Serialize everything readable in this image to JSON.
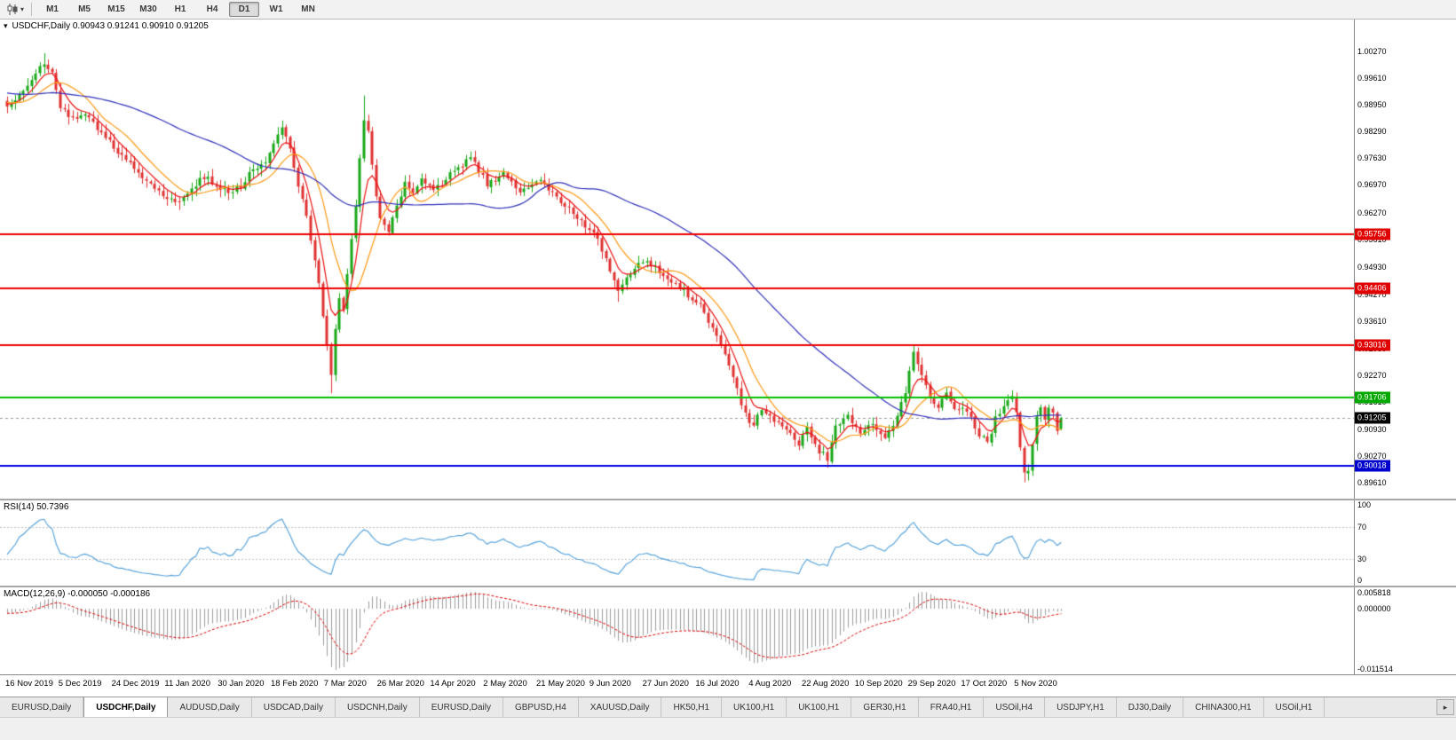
{
  "toolbar": {
    "dropdown_caret": "▾",
    "timeframes": [
      "M1",
      "M5",
      "M15",
      "M30",
      "H1",
      "H4",
      "D1",
      "W1",
      "MN"
    ],
    "active_timeframe": "D1"
  },
  "main_chart": {
    "legend": "USDCHF,Daily 0.90943 0.91241 0.90910 0.91205",
    "one_click_caret": "▾",
    "y_ticks": [
      "1.00270",
      "0.99610",
      "0.98950",
      "0.98290",
      "0.97630",
      "0.96970",
      "0.96270",
      "0.95610",
      "0.94930",
      "0.94270",
      "0.93610",
      "0.92930",
      "0.92270",
      "0.91610",
      "0.90930",
      "0.90270",
      "0.89610"
    ],
    "price_lines": [
      {
        "price": 0.95756,
        "label": "0.95756",
        "line_color": "#ee0000",
        "tag_bg": "#e00000"
      },
      {
        "price": 0.94406,
        "label": "0.94406",
        "line_color": "#ee0000",
        "tag_bg": "#e00000"
      },
      {
        "price": 0.93016,
        "label": "0.93016",
        "line_color": "#ee0000",
        "tag_bg": "#e00000"
      },
      {
        "price": 0.91706,
        "label": "0.91706",
        "line_color": "#00c000",
        "tag_bg": "#00a800"
      },
      {
        "price": 0.90018,
        "label": "0.90018",
        "line_color": "#0000e0",
        "tag_bg": "#0000cc"
      }
    ],
    "bid_price": {
      "value": 0.91205,
      "label": "0.91205",
      "tag_bg": "#000000",
      "line_color": "#9a9a9a"
    }
  },
  "rsi_panel": {
    "legend": "RSI(14) 50.7396",
    "period": 14,
    "value": 50.7396,
    "levels": [
      70,
      30
    ],
    "y_ticks": [
      "100",
      "70",
      "30",
      "0"
    ],
    "line_color": "#4d9edb"
  },
  "macd_panel": {
    "legend": "MACD(12,26,9) -0.000050 -0.000186",
    "macd_value": -5e-05,
    "signal_value": -0.000186,
    "y_ticks": [
      "0.005818",
      "0.000000",
      "-0.011514"
    ],
    "hist_color": "#9c9c9c",
    "signal_color": "#e00000"
  },
  "time_axis": {
    "labels": [
      "16 Nov 2019",
      "5 Dec 2019",
      "24 Dec 2019",
      "11 Jan 2020",
      "30 Jan 2020",
      "18 Feb 2020",
      "7 Mar 2020",
      "26 Mar 2020",
      "14 Apr 2020",
      "2 May 2020",
      "21 May 2020",
      "9 Jun 2020",
      "27 Jun 2020",
      "16 Jul 2020",
      "4 Aug 2020",
      "22 Aug 2020",
      "10 Sep 2020",
      "29 Sep 2020",
      "17 Oct 2020",
      "5 Nov 2020"
    ]
  },
  "tabs": {
    "items": [
      {
        "label": "EURUSD,Daily",
        "active": false
      },
      {
        "label": "USDCHF,Daily",
        "active": true
      },
      {
        "label": "AUDUSD,Daily",
        "active": false
      },
      {
        "label": "USDCAD,Daily",
        "active": false
      },
      {
        "label": "USDCNH,Daily",
        "active": false
      },
      {
        "label": "EURUSD,Daily",
        "active": false
      },
      {
        "label": "GBPUSD,H4",
        "active": false
      },
      {
        "label": "XAUUSD,Daily",
        "active": false
      },
      {
        "label": "HK50,H1",
        "active": false
      },
      {
        "label": "UK100,H1",
        "active": false
      },
      {
        "label": "UK100,H1",
        "active": false
      },
      {
        "label": "GER30,H1",
        "active": false
      },
      {
        "label": "FRA40,H1",
        "active": false
      },
      {
        "label": "USOil,H4",
        "active": false
      },
      {
        "label": "USDJPY,H1",
        "active": false
      },
      {
        "label": "DJ30,Daily",
        "active": false
      },
      {
        "label": "CHINA300,H1",
        "active": false
      },
      {
        "label": "USOil,H1",
        "active": false
      }
    ],
    "scroll_right": "▸"
  },
  "chart_data": {
    "type": "candlestick",
    "symbol": "USDCHF",
    "timeframe": "Daily",
    "bars": 258,
    "last_ohlc": {
      "open": 0.90943,
      "high": 0.91241,
      "low": 0.9091,
      "close": 0.91205
    },
    "price_range_visible": [
      0.8928,
      1.011
    ],
    "up_color": "#18a818",
    "down_color": "#e03232",
    "horizontal_levels": [
      0.95756,
      0.94406,
      0.93016,
      0.91706,
      0.90018
    ],
    "indicators": [
      "RSI(14)",
      "MACD(12,26,9)"
    ],
    "moving_averages": [
      {
        "period": 6,
        "type": "ema",
        "color": "#ee1111"
      },
      {
        "period": 12,
        "type": "sma",
        "color": "#ff9914"
      },
      {
        "period": 50,
        "type": "sma",
        "color": "#3030bb"
      }
    ],
    "close_anchors": [
      [
        0,
        0.989
      ],
      [
        3,
        0.9915
      ],
      [
        6,
        0.996
      ],
      [
        9,
        1.0
      ],
      [
        11,
        0.9975
      ],
      [
        13,
        0.989
      ],
      [
        16,
        0.9862
      ],
      [
        19,
        0.987
      ],
      [
        22,
        0.9838
      ],
      [
        26,
        0.9792
      ],
      [
        29,
        0.976
      ],
      [
        32,
        0.9722
      ],
      [
        35,
        0.97
      ],
      [
        38,
        0.9672
      ],
      [
        42,
        0.9656
      ],
      [
        45,
        0.969
      ],
      [
        48,
        0.9716
      ],
      [
        51,
        0.9698
      ],
      [
        54,
        0.9676
      ],
      [
        57,
        0.9692
      ],
      [
        60,
        0.9738
      ],
      [
        63,
        0.9758
      ],
      [
        65,
        0.98
      ],
      [
        67,
        0.9836
      ],
      [
        69,
        0.9788
      ],
      [
        71,
        0.97
      ],
      [
        73,
        0.9614
      ],
      [
        75,
        0.9516
      ],
      [
        77,
        0.9378
      ],
      [
        79,
        0.9232
      ],
      [
        80,
        0.9348
      ],
      [
        81,
        0.942
      ],
      [
        82,
        0.9388
      ],
      [
        83,
        0.9482
      ],
      [
        84,
        0.956
      ],
      [
        85,
        0.9648
      ],
      [
        86,
        0.9758
      ],
      [
        87,
        0.9858
      ],
      [
        88,
        0.9836
      ],
      [
        89,
        0.9744
      ],
      [
        90,
        0.9676
      ],
      [
        91,
        0.9618
      ],
      [
        93,
        0.9582
      ],
      [
        95,
        0.964
      ],
      [
        97,
        0.9702
      ],
      [
        99,
        0.9678
      ],
      [
        101,
        0.9718
      ],
      [
        104,
        0.9682
      ],
      [
        108,
        0.9722
      ],
      [
        113,
        0.9762
      ],
      [
        117,
        0.97
      ],
      [
        121,
        0.9724
      ],
      [
        125,
        0.9678
      ],
      [
        130,
        0.9712
      ],
      [
        134,
        0.9662
      ],
      [
        138,
        0.9628
      ],
      [
        143,
        0.9578
      ],
      [
        146,
        0.9518
      ],
      [
        149,
        0.9432
      ],
      [
        152,
        0.9482
      ],
      [
        156,
        0.9512
      ],
      [
        160,
        0.9468
      ],
      [
        164,
        0.9442
      ],
      [
        169,
        0.9398
      ],
      [
        172,
        0.9342
      ],
      [
        175,
        0.9282
      ],
      [
        178,
        0.9192
      ],
      [
        180,
        0.9128
      ],
      [
        182,
        0.9098
      ],
      [
        184,
        0.9148
      ],
      [
        187,
        0.9118
      ],
      [
        190,
        0.9086
      ],
      [
        193,
        0.9058
      ],
      [
        195,
        0.9092
      ],
      [
        198,
        0.904
      ],
      [
        200,
        0.9022
      ],
      [
        202,
        0.9098
      ],
      [
        205,
        0.9128
      ],
      [
        208,
        0.9088
      ],
      [
        211,
        0.9108
      ],
      [
        214,
        0.9078
      ],
      [
        217,
        0.9122
      ],
      [
        219,
        0.9188
      ],
      [
        221,
        0.9282
      ],
      [
        223,
        0.9232
      ],
      [
        225,
        0.9178
      ],
      [
        227,
        0.9148
      ],
      [
        229,
        0.9178
      ],
      [
        231,
        0.9142
      ],
      [
        233,
        0.9152
      ],
      [
        235,
        0.9118
      ],
      [
        237,
        0.9082
      ],
      [
        239,
        0.9058
      ],
      [
        241,
        0.9118
      ],
      [
        243,
        0.9152
      ],
      [
        245,
        0.9178
      ],
      [
        246,
        0.9128
      ],
      [
        247,
        0.9042
      ],
      [
        248,
        0.8992
      ],
      [
        249,
        0.8988
      ],
      [
        250,
        0.9058
      ],
      [
        251,
        0.9132
      ],
      [
        252,
        0.9152
      ],
      [
        253,
        0.9122
      ],
      [
        254,
        0.914
      ],
      [
        255,
        0.9128
      ],
      [
        256,
        0.9094
      ],
      [
        257,
        0.91205
      ]
    ],
    "wick_overrides": [
      {
        "bar": 9,
        "high": 1.0023
      },
      {
        "bar": 42,
        "low": 0.9635
      },
      {
        "bar": 79,
        "low": 0.9182
      },
      {
        "bar": 87,
        "high": 0.9918
      },
      {
        "bar": 149,
        "low": 0.9408
      },
      {
        "bar": 200,
        "low": 0.8998
      },
      {
        "bar": 221,
        "high": 0.9301
      },
      {
        "bar": 248,
        "low": 0.8962
      }
    ]
  }
}
